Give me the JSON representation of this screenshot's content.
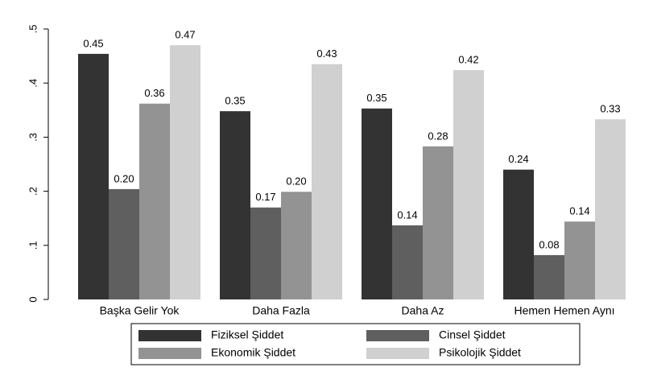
{
  "chart_data": {
    "type": "bar",
    "categories": [
      "Başka Gelir Yok",
      "Daha Fazla",
      "Daha Az",
      "Hemen Hemen Aynı"
    ],
    "series": [
      {
        "name": "Fiziksel Şiddet",
        "color": "#333333",
        "values": [
          0.454,
          0.348,
          0.353,
          0.24
        ],
        "value_labels": [
          "0.45",
          "0.35",
          "0.35",
          "0.24"
        ]
      },
      {
        "name": "Cinsel Şiddet",
        "color": "#5f5f5f",
        "values": [
          0.204,
          0.17,
          0.137,
          0.082
        ],
        "value_labels": [
          "0.20",
          "0.17",
          "0.14",
          "0.08"
        ]
      },
      {
        "name": "Ekonomik Şiddet",
        "color": "#939393",
        "values": [
          0.362,
          0.199,
          0.283,
          0.144
        ],
        "value_labels": [
          "0.36",
          "0.20",
          "0.28",
          "0.14"
        ]
      },
      {
        "name": "Psikolojik Şiddet",
        "color": "#d0d0d0",
        "values": [
          0.47,
          0.435,
          0.424,
          0.333
        ],
        "value_labels": [
          "0.47",
          "0.43",
          "0.42",
          "0.33"
        ]
      }
    ],
    "ylim": [
      0,
      0.5
    ],
    "yticks": [
      0,
      {
        "value": 0.1,
        "label": ".1"
      },
      {
        "value": 0.2,
        "label": ".2"
      },
      {
        "value": 0.3,
        "label": ".3"
      },
      {
        "value": 0.4,
        "label": ".4"
      },
      {
        "value": 0.5,
        "label": ".5"
      }
    ],
    "legend": "bottom"
  }
}
